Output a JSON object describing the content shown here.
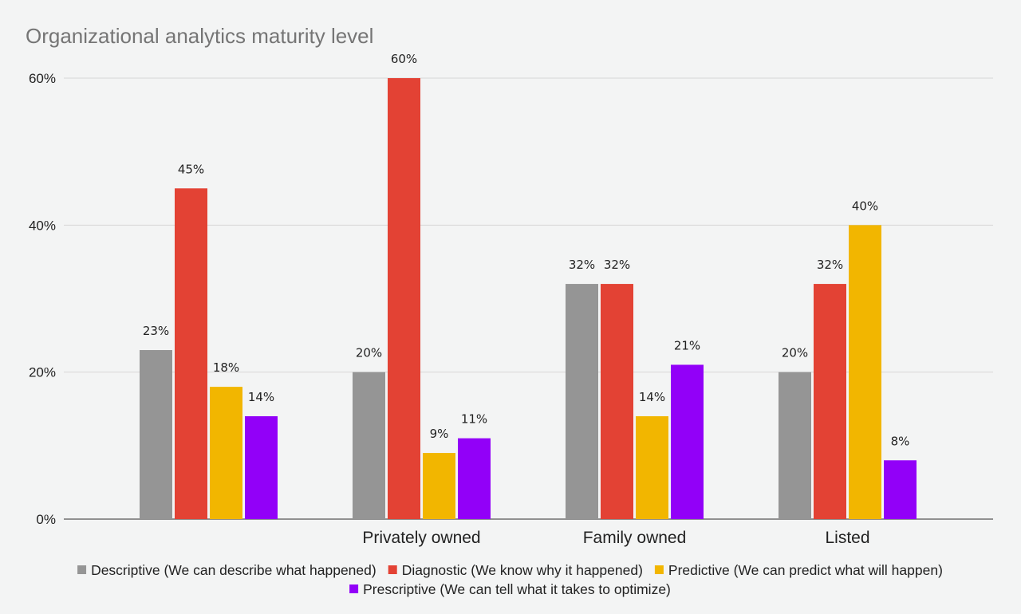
{
  "chart_data": {
    "type": "bar",
    "title": "Organizational analytics maturity level",
    "categories": [
      "",
      "Privately owned",
      "Family owned",
      "Listed"
    ],
    "series": [
      {
        "name": "Descriptive (We can describe what happened)",
        "color": "#959595",
        "values": [
          23,
          20,
          32,
          20
        ]
      },
      {
        "name": "Diagnostic (We know why it happened)",
        "color": "#e34234",
        "values": [
          45,
          60,
          32,
          32
        ]
      },
      {
        "name": "Predictive (We can predict what will happen)",
        "color": "#f2b600",
        "values": [
          18,
          9,
          14,
          40
        ]
      },
      {
        "name": "Prescriptive (We can tell what it takes to optimize)",
        "color": "#9200f8",
        "values": [
          14,
          11,
          21,
          8
        ]
      }
    ],
    "value_suffix": "%",
    "ylim": [
      0,
      60
    ],
    "yticks": [
      "0%",
      "20%",
      "40%",
      "60%"
    ],
    "ytick_values": [
      0,
      20,
      40,
      60
    ],
    "grid": true,
    "legend": "bottom",
    "xlabel": "",
    "ylabel": ""
  }
}
